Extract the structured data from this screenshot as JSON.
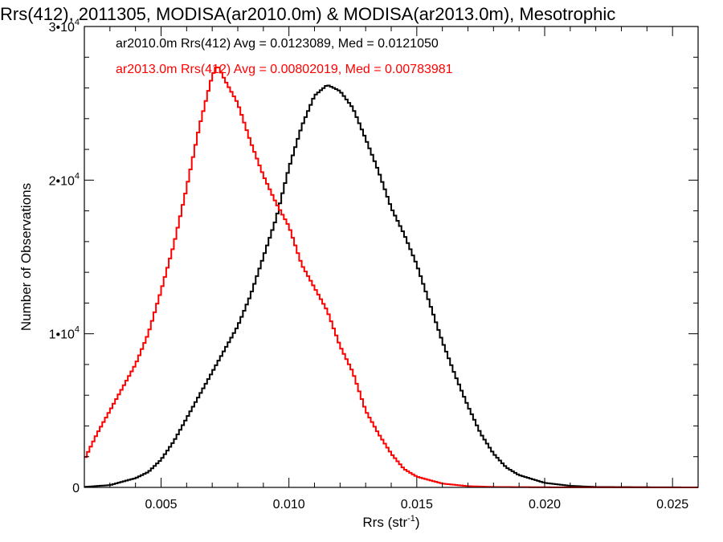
{
  "chart_data": {
    "type": "line",
    "title": "Rrs(412), 2011305, MODISA(ar2010.0m) & MODISA(ar2013.0m), Mesotrophic",
    "xlabel": "Rrs (str",
    "xlabel_sup": "-1",
    "xlabel_suffix": ")",
    "ylabel": "Number of Observations",
    "xlim": [
      0.002,
      0.026
    ],
    "ylim": [
      0,
      30000
    ],
    "x_ticks": [
      {
        "value": 0.005,
        "label": "0.005"
      },
      {
        "value": 0.01,
        "label": "0.010"
      },
      {
        "value": 0.015,
        "label": "0.015"
      },
      {
        "value": 0.02,
        "label": "0.020"
      },
      {
        "value": 0.025,
        "label": "0.025"
      }
    ],
    "y_ticks": [
      {
        "value": 0,
        "base": "0",
        "exp": ""
      },
      {
        "value": 10000,
        "base": "1•10",
        "exp": "4"
      },
      {
        "value": 20000,
        "base": "2•10",
        "exp": "4"
      },
      {
        "value": 30000,
        "base": "3•10",
        "exp": "4"
      }
    ],
    "grid": false,
    "legend_position": "top-left",
    "series": [
      {
        "name": "ar2010.0m Rrs(412) Avg = 0.0123089, Med = 0.0121050",
        "color": "#000000",
        "points": [
          [
            0.002,
            30
          ],
          [
            0.003,
            150
          ],
          [
            0.004,
            600
          ],
          [
            0.0045,
            1000
          ],
          [
            0.005,
            1800
          ],
          [
            0.0055,
            3000
          ],
          [
            0.006,
            4500
          ],
          [
            0.0065,
            6000
          ],
          [
            0.007,
            7500
          ],
          [
            0.0075,
            9000
          ],
          [
            0.008,
            10500
          ],
          [
            0.0085,
            12500
          ],
          [
            0.009,
            15000
          ],
          [
            0.0095,
            17500
          ],
          [
            0.01,
            20800
          ],
          [
            0.0105,
            23500
          ],
          [
            0.011,
            25500
          ],
          [
            0.0115,
            26200
          ],
          [
            0.012,
            25800
          ],
          [
            0.0125,
            24700
          ],
          [
            0.013,
            22700
          ],
          [
            0.0135,
            20600
          ],
          [
            0.014,
            18200
          ],
          [
            0.0145,
            16500
          ],
          [
            0.015,
            14500
          ],
          [
            0.0155,
            12000
          ],
          [
            0.016,
            9500
          ],
          [
            0.0165,
            7300
          ],
          [
            0.017,
            5300
          ],
          [
            0.0175,
            3500
          ],
          [
            0.018,
            2200
          ],
          [
            0.0185,
            1300
          ],
          [
            0.019,
            800
          ],
          [
            0.02,
            300
          ],
          [
            0.021,
            100
          ],
          [
            0.022,
            30
          ],
          [
            0.024,
            10
          ],
          [
            0.026,
            0
          ]
        ]
      },
      {
        "name": "ar2013.0m Rrs(412) Avg = 0.00802019, Med = 0.00783981",
        "color": "#ff0000",
        "points": [
          [
            0.002,
            1800
          ],
          [
            0.0025,
            3500
          ],
          [
            0.003,
            5000
          ],
          [
            0.0035,
            6500
          ],
          [
            0.004,
            8000
          ],
          [
            0.0045,
            10000
          ],
          [
            0.005,
            12800
          ],
          [
            0.0055,
            15800
          ],
          [
            0.006,
            19500
          ],
          [
            0.0065,
            23500
          ],
          [
            0.007,
            26800
          ],
          [
            0.0072,
            27500
          ],
          [
            0.0075,
            26500
          ],
          [
            0.008,
            25000
          ],
          [
            0.0085,
            22500
          ],
          [
            0.009,
            20300
          ],
          [
            0.0095,
            18500
          ],
          [
            0.01,
            17000
          ],
          [
            0.0105,
            14500
          ],
          [
            0.011,
            13000
          ],
          [
            0.0115,
            11500
          ],
          [
            0.012,
            9200
          ],
          [
            0.0125,
            7500
          ],
          [
            0.013,
            5000
          ],
          [
            0.0135,
            3500
          ],
          [
            0.014,
            2200
          ],
          [
            0.0145,
            1200
          ],
          [
            0.015,
            700
          ],
          [
            0.016,
            250
          ],
          [
            0.017,
            80
          ],
          [
            0.018,
            30
          ],
          [
            0.02,
            10
          ],
          [
            0.026,
            0
          ]
        ]
      }
    ]
  }
}
